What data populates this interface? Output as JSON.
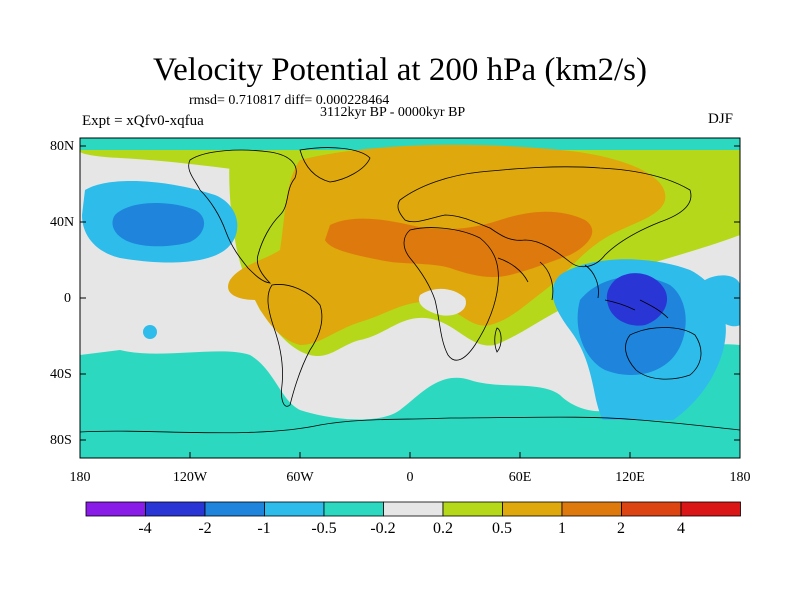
{
  "header": {
    "title": "Velocity Potential at 200 hPa (km2/s)",
    "stats": "rmsd= 0.710817 diff= 0.000228464",
    "period": "3112kyr BP - 0000kyr BP",
    "experiment": "Expt = xQfv0-xqfua",
    "season": "DJF"
  },
  "axes": {
    "lat_labels": [
      "80N",
      "40N",
      "0",
      "40S",
      "80S"
    ],
    "lon_labels": [
      "180",
      "120W",
      "60W",
      "0",
      "60E",
      "120E",
      "180"
    ]
  },
  "colorbar": {
    "labels": [
      "-4",
      "-2",
      "-1",
      "-0.5",
      "-0.2",
      "0.2",
      "0.5",
      "1",
      "2",
      "4"
    ],
    "colors": [
      "#8a1ce8",
      "#2a35d6",
      "#1e84dc",
      "#2ebcea",
      "#2cd9c0",
      "#e6e6e6",
      "#b5d81a",
      "#dfa80c",
      "#de7a0d",
      "#dc4412",
      "#da1616"
    ]
  },
  "map_colors": {
    "white": "#e6e6e6",
    "green": "#b5d81a",
    "gold": "#dfa80c",
    "orange": "#de7a0d",
    "teal": "#2cd9c0",
    "light_blue": "#2ebcea",
    "blue": "#1e84dc",
    "dark_blue": "#2a35d6"
  }
}
